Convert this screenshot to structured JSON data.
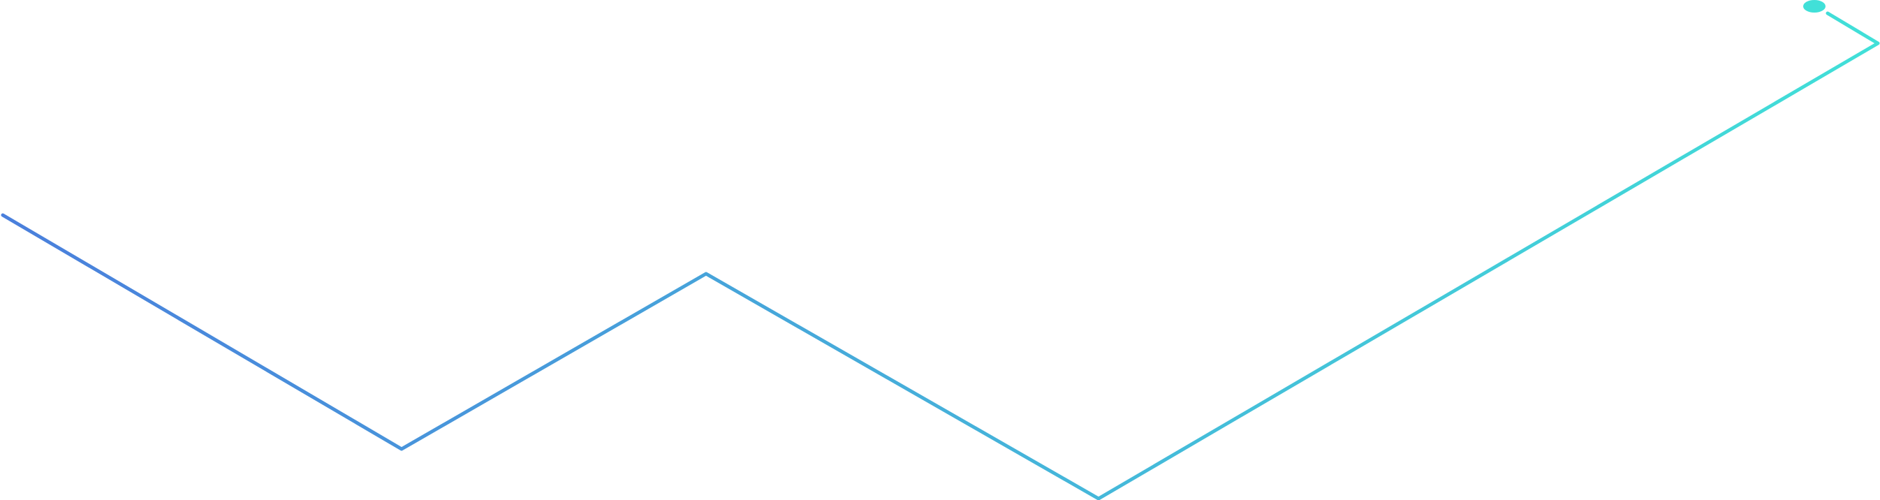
{
  "graphic": {
    "kind": "decorative-zigzag-line",
    "stroke_gradient": {
      "start_color": "#4a7fdc",
      "end_color": "#41e0d8"
    },
    "end_marker_color": "#41e0d8"
  }
}
